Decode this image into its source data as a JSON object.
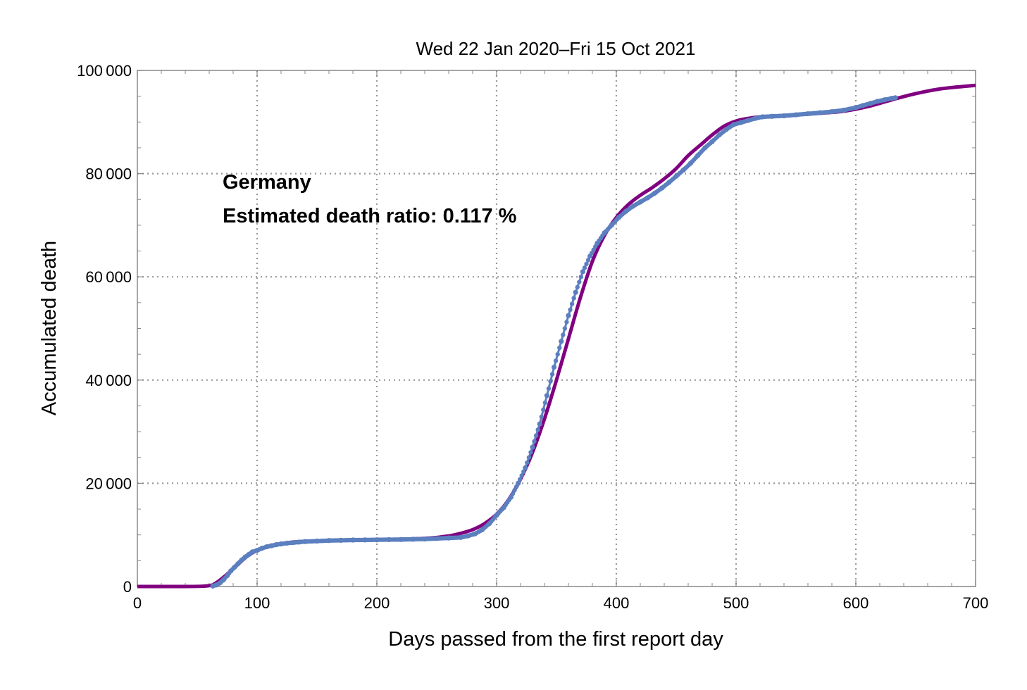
{
  "chart_data": {
    "type": "line",
    "title": "Wed 22 Jan 2020–Fri 15 Oct 2021",
    "xlabel": "Days passed from the first report day",
    "ylabel": "Accumulated death",
    "xlim": [
      0,
      700
    ],
    "ylim": [
      0,
      100000
    ],
    "x_ticks": [
      0,
      100,
      200,
      300,
      400,
      500,
      600,
      700
    ],
    "y_ticks": [
      0,
      20000,
      40000,
      60000,
      80000,
      100000
    ],
    "x_tick_labels": [
      "0",
      "100",
      "200",
      "300",
      "400",
      "500",
      "600",
      "700"
    ],
    "y_tick_labels": [
      "0",
      "20 000",
      "40 000",
      "60 000",
      "80 000",
      "100 000"
    ],
    "grid": true,
    "annotations": [
      "Germany",
      "Estimated death ratio: 0.117 %"
    ],
    "series": [
      {
        "role": "fitted curve",
        "color": "#800080",
        "x": [
          0,
          40,
          55,
          62,
          67,
          72,
          78,
          85,
          92,
          100,
          110,
          120,
          130,
          145,
          165,
          190,
          220,
          245,
          260,
          270,
          280,
          290,
          300,
          310,
          320,
          330,
          340,
          350,
          360,
          370,
          380,
          390,
          400,
          410,
          420,
          430,
          440,
          450,
          460,
          470,
          480,
          490,
          500,
          510,
          520,
          535,
          550,
          570,
          590,
          610,
          630,
          650,
          670,
          690,
          700
        ],
        "y": [
          0,
          0,
          60,
          250,
          900,
          1800,
          3000,
          4500,
          5900,
          7000,
          7800,
          8300,
          8600,
          8800,
          8950,
          9050,
          9150,
          9400,
          9800,
          10300,
          11000,
          12200,
          14000,
          16800,
          20800,
          26000,
          32500,
          40000,
          48000,
          56000,
          63000,
          68000,
          71500,
          74000,
          75800,
          77300,
          79000,
          81000,
          83500,
          85500,
          87500,
          89200,
          90200,
          90700,
          91000,
          91200,
          91400,
          91700,
          92100,
          93000,
          94300,
          95500,
          96400,
          96900,
          97100
        ]
      },
      {
        "role": "reported data",
        "color": "#5B7FBF",
        "x": [
          63,
          66,
          69,
          72,
          75,
          78,
          81,
          84,
          87,
          90,
          93,
          96,
          100,
          104,
          108,
          112,
          116,
          120,
          125,
          130,
          135,
          140,
          150,
          160,
          170,
          180,
          190,
          200,
          210,
          220,
          230,
          240,
          250,
          260,
          270,
          276,
          282,
          288,
          294,
          300,
          306,
          312,
          318,
          324,
          330,
          336,
          342,
          348,
          354,
          360,
          366,
          372,
          378,
          384,
          390,
          396,
          402,
          408,
          414,
          420,
          426,
          432,
          438,
          444,
          450,
          456,
          462,
          468,
          474,
          480,
          486,
          492,
          498,
          504,
          510,
          516,
          522,
          530,
          540,
          550,
          560,
          570,
          580,
          590,
          600,
          606,
          612,
          618,
          624,
          630,
          633
        ],
        "y": [
          100,
          300,
          700,
          1300,
          2100,
          3000,
          3700,
          4400,
          5100,
          5700,
          6200,
          6700,
          7000,
          7400,
          7700,
          7900,
          8100,
          8250,
          8400,
          8500,
          8600,
          8700,
          8800,
          8900,
          8950,
          9000,
          9020,
          9050,
          9080,
          9100,
          9150,
          9200,
          9300,
          9400,
          9500,
          9800,
          10200,
          11000,
          12200,
          13800,
          15300,
          17300,
          20000,
          23000,
          27000,
          31500,
          37000,
          42500,
          47500,
          52500,
          57000,
          61000,
          64000,
          66500,
          68500,
          70000,
          71500,
          72700,
          73700,
          74500,
          75300,
          76200,
          77200,
          78300,
          79500,
          80700,
          82000,
          83500,
          85000,
          86200,
          87500,
          88600,
          89500,
          89900,
          90300,
          90700,
          91000,
          91100,
          91200,
          91400,
          91600,
          91800,
          92000,
          92300,
          92800,
          93200,
          93600,
          94000,
          94300,
          94600,
          94700
        ]
      }
    ]
  }
}
